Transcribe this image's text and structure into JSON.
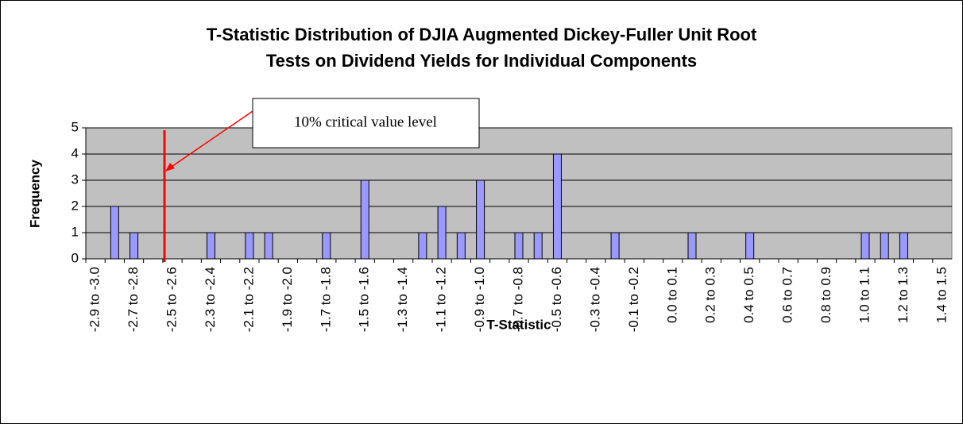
{
  "chart_data": {
    "type": "bar",
    "title": [
      "T-Statistic Distribution of DJIA Augmented Dickey-Fuller Unit Root",
      "Tests on Dividend Yields for Individual Components"
    ],
    "x_label": "T-Statistic",
    "y_label": "Frequency",
    "annotation": "10% critical value level",
    "categories": [
      "-2.9 to -3.0",
      null,
      "-2.7 to -2.8",
      null,
      "-2.5 to -2.6",
      null,
      "-2.3 to -2.4",
      null,
      "-2.1 to -2.2",
      null,
      "-1.9 to -2.0",
      null,
      "-1.7 to -1.8",
      null,
      "-1.5 to -1.6",
      null,
      "-1.3 to -1.4",
      null,
      "-1.1 to -1.2",
      null,
      "-0.9 to -1.0",
      null,
      "-0.7 to -0.8",
      null,
      "-0.5 to -0.6",
      null,
      "-0.3 to -0.4",
      null,
      "-0.1 to -0.2",
      null,
      "0.0 to 0.1",
      null,
      "0.2 to 0.3",
      null,
      "0.4 to 0.5",
      null,
      "0.6 to 0.7",
      null,
      "0.8 to 0.9",
      null,
      "1.0 to 1.1",
      null,
      "1.2 to 1.3",
      null,
      "1.4 to 1.5"
    ],
    "values": [
      0,
      2,
      1,
      0,
      0,
      0,
      1,
      0,
      1,
      1,
      0,
      0,
      1,
      0,
      3,
      0,
      0,
      1,
      2,
      1,
      3,
      0,
      1,
      1,
      4,
      0,
      0,
      1,
      0,
      0,
      0,
      1,
      0,
      0,
      1,
      0,
      0,
      0,
      0,
      0,
      1,
      1,
      1,
      0,
      0
    ],
    "color": "#9999ff",
    "ylim": [
      0,
      5
    ],
    "yticks": [
      0,
      1,
      2,
      3,
      4,
      5
    ],
    "grid": true
  }
}
